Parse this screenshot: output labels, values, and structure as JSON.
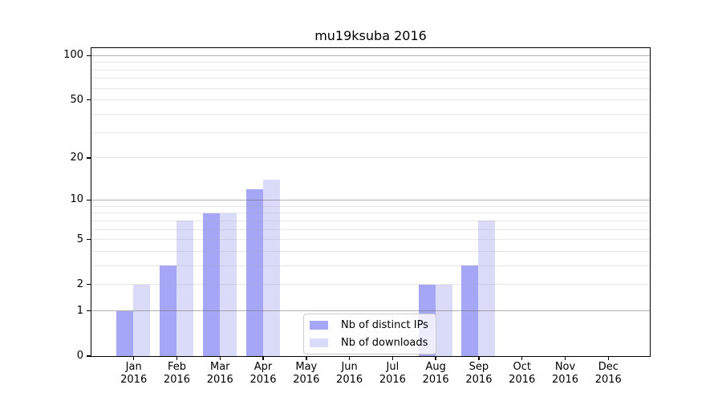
{
  "chart_data": {
    "type": "bar",
    "title": "mu19ksuba 2016",
    "categories": [
      "Jan",
      "Feb",
      "Mar",
      "Apr",
      "May",
      "Jun",
      "Jul",
      "Aug",
      "Sep",
      "Oct",
      "Nov",
      "Dec"
    ],
    "category_year": "2016",
    "series": [
      {
        "name": "Nb of distinct IPs",
        "color": "#a6a6f6",
        "values": [
          1,
          3,
          8,
          12,
          0,
          0,
          0,
          2,
          3,
          0,
          0,
          0
        ]
      },
      {
        "name": "Nb of downloads",
        "color": "#dadaf9",
        "values": [
          2,
          7,
          8,
          14,
          0,
          0,
          0,
          2,
          7,
          0,
          0,
          0
        ]
      }
    ],
    "yscale": "log1p",
    "ylim": [
      0,
      112
    ],
    "yticks": [
      0,
      1,
      2,
      5,
      10,
      20,
      50,
      100
    ],
    "major_gridlines": [
      1,
      10,
      100
    ],
    "minor_gridlines": [
      2,
      3,
      4,
      5,
      6,
      7,
      8,
      9,
      20,
      30,
      40,
      50,
      60,
      70,
      80,
      90
    ],
    "grid": "on",
    "legend": {
      "position": "bottom-center"
    },
    "colors": {
      "spine": "#000000",
      "major_grid": "#b3b3b3",
      "minor_grid": "#e9e9e9",
      "legend_border": "#cccccc"
    }
  }
}
